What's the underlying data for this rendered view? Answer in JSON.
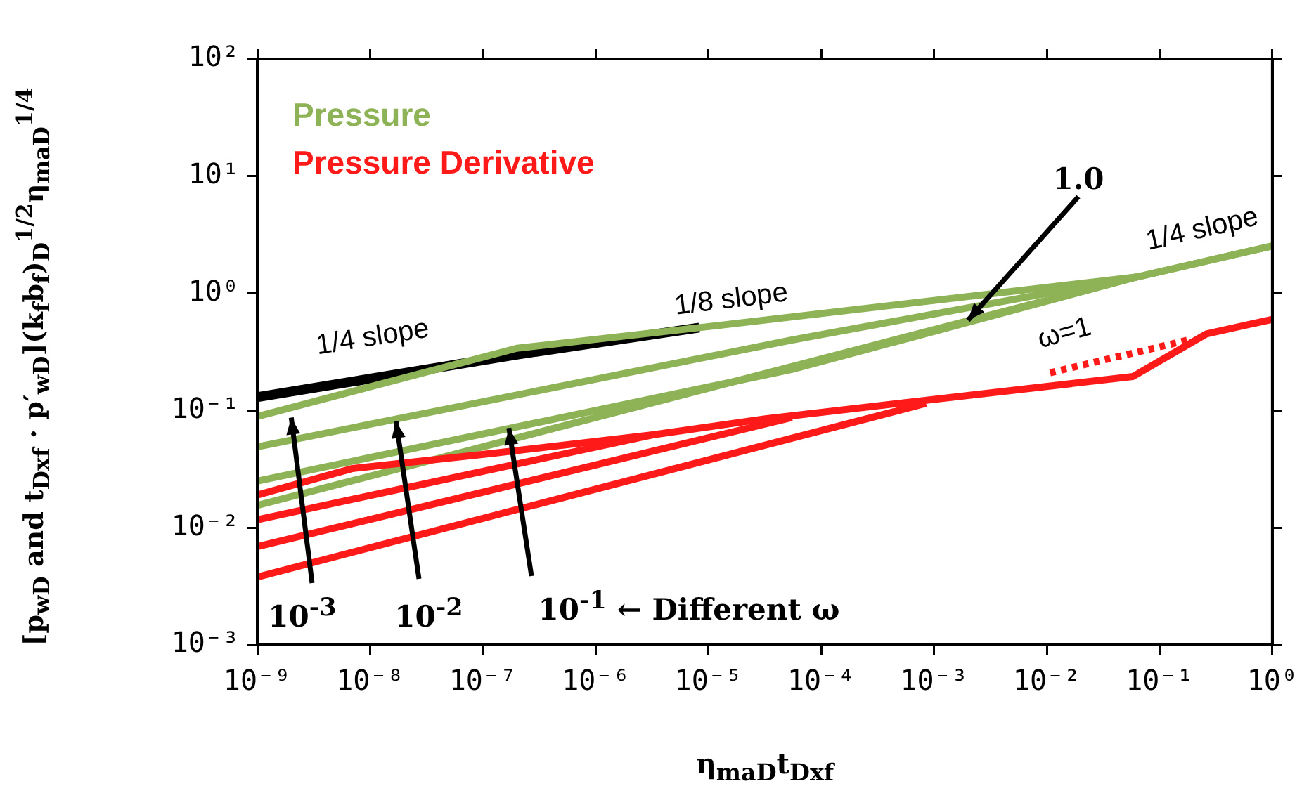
{
  "chart_data": {
    "type": "line",
    "xlabel": "η$_{maD}$t$_{Dxf}$",
    "ylabel": "[p$_{wD}$ and t$_{Dxf}$ · p′$_{wD}$](k$_{f}$b$_{f}$)$_{D}$$^{1/2}$η$_{maD}$$^{1/4}$",
    "log": "xy",
    "xlim": [
      1e-09,
      1
    ],
    "ylim": [
      0.001,
      100
    ],
    "xticks": [
      {
        "value": 1e-09,
        "label": "10⁻⁹"
      },
      {
        "value": 1e-08,
        "label": "10⁻⁸"
      },
      {
        "value": 1e-07,
        "label": "10⁻⁷"
      },
      {
        "value": 1e-06,
        "label": "10⁻⁶"
      },
      {
        "value": 1e-05,
        "label": "10⁻⁵"
      },
      {
        "value": 0.0001,
        "label": "10⁻⁴"
      },
      {
        "value": 0.001,
        "label": "10⁻³"
      },
      {
        "value": 0.01,
        "label": "10⁻²"
      },
      {
        "value": 0.1,
        "label": "10⁻¹"
      },
      {
        "value": 1,
        "label": "10⁰"
      }
    ],
    "yticks": [
      {
        "value": 0.001,
        "label": "10⁻³"
      },
      {
        "value": 0.01,
        "label": "10⁻²"
      },
      {
        "value": 0.1,
        "label": "10⁻¹"
      },
      {
        "value": 1,
        "label": "10⁰"
      },
      {
        "value": 10,
        "label": "10¹"
      },
      {
        "value": 100,
        "label": "10²"
      }
    ],
    "grid": false,
    "legend": "top left",
    "marker": "none",
    "line_style": "solid",
    "series": [
      {
        "color": "#000000",
        "x": [
          1e-09,
          2e-07,
          8.3e-06
        ],
        "values": [
          0.13,
          0.3,
          0.51
        ]
      },
      {
        "name": "Pressure",
        "color": "#8db356",
        "x": [
          1e-09,
          2e-07,
          8.3e-06,
          0.063,
          1
        ],
        "values": [
          0.089,
          0.34,
          0.51,
          1.38,
          2.54
        ]
      },
      {
        "color": "#8db356",
        "x": [
          1e-09,
          5.5e-05,
          0.063
        ],
        "values": [
          0.049,
          0.4,
          1.38
        ]
      },
      {
        "color": "#8db356",
        "x": [
          1e-09,
          5.5e-05,
          0.063
        ],
        "values": [
          0.025,
          0.224,
          1.38
        ]
      },
      {
        "color": "#8db356",
        "x": [
          1e-09,
          0.063,
          1
        ],
        "values": [
          0.0155,
          1.38,
          2.54
        ]
      },
      {
        "name": "Pressure Derivative",
        "color": "#ff1a1a",
        "x": [
          1e-09,
          7e-09,
          1.2e-07,
          3.2e-06,
          3.2e-05,
          0.058,
          0.26,
          1
        ],
        "values": [
          0.019,
          0.032,
          0.043,
          0.062,
          0.085,
          0.195,
          0.45,
          0.6
        ]
      },
      {
        "color": "#ff1a1a",
        "x": [
          1e-09,
          3.2e-06
        ],
        "values": [
          0.0117,
          0.062
        ]
      },
      {
        "color": "#ff1a1a",
        "x": [
          1e-09,
          5.5e-05
        ],
        "values": [
          0.0069,
          0.087
        ]
      },
      {
        "color": "#ff1a1a",
        "x": [
          1e-09,
          0.00085
        ],
        "values": [
          0.0038,
          0.115
        ]
      },
      {
        "color": "#ff1a1a",
        "line_style": "dotted",
        "x": [
          0.0107,
          0.18
        ],
        "values": [
          0.21,
          0.4
        ]
      }
    ],
    "annotations": [
      "1/4 slope",
      "1/8 slope",
      "1/4 slope",
      "ω=1",
      {
        "text": "1.0",
        "x": 0.002,
        "y": 0.59
      },
      {
        "text": "10$^{-3}$",
        "x": 2e-09,
        "y": 0.087
      },
      {
        "text": "10$^{-2}$",
        "x": 1.7e-08,
        "y": 0.081
      },
      {
        "text": "10$^{-1}$ ← Different ω",
        "x": 1.7e-07,
        "y": 0.071
      }
    ]
  }
}
